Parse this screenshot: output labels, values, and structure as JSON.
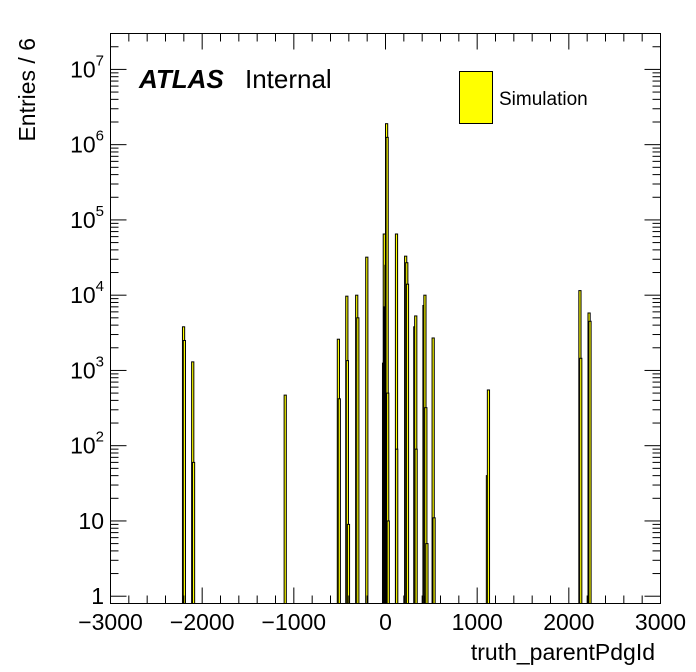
{
  "chart_data": {
    "type": "bar",
    "title": "",
    "xlabel": "truth_parentPdgId",
    "ylabel": "Entries / 6",
    "xlim": [
      -3000,
      3000
    ],
    "ylim": [
      0.8,
      30000000
    ],
    "yscale": "log",
    "grid": false,
    "legend_position": "top-right",
    "x_ticks": [
      {
        "value": -3000,
        "label": "−3000"
      },
      {
        "value": -2000,
        "label": "−2000"
      },
      {
        "value": -1000,
        "label": "−1000"
      },
      {
        "value": 0,
        "label": "0"
      },
      {
        "value": 1000,
        "label": "1000"
      },
      {
        "value": 2000,
        "label": "2000"
      },
      {
        "value": 3000,
        "label": "3000"
      }
    ],
    "y_ticks": [
      {
        "value": 1,
        "base": "1",
        "exp": ""
      },
      {
        "value": 10,
        "base": "10",
        "exp": ""
      },
      {
        "value": 100,
        "base": "10",
        "exp": "2"
      },
      {
        "value": 1000,
        "base": "10",
        "exp": "3"
      },
      {
        "value": 10000,
        "base": "10",
        "exp": "4"
      },
      {
        "value": 100000,
        "base": "10",
        "exp": "5"
      },
      {
        "value": 1000000,
        "base": "10",
        "exp": "6"
      },
      {
        "value": 10000000,
        "base": "10",
        "exp": "7"
      }
    ],
    "annotation": {
      "bold": "ATLAS",
      "normal": "Internal"
    },
    "series": [
      {
        "name": "Simulation",
        "color": "#ffff00",
        "bins": [
          {
            "x": -2212,
            "y": 3800
          },
          {
            "x": -2203,
            "y": 2500
          },
          {
            "x": -2112,
            "y": 1300
          },
          {
            "x": -2103,
            "y": 60
          },
          {
            "x": -1103,
            "y": 470
          },
          {
            "x": -523,
            "y": 2600
          },
          {
            "x": -513,
            "y": 420
          },
          {
            "x": -431,
            "y": 9700
          },
          {
            "x": -425,
            "y": 1350
          },
          {
            "x": -413,
            "y": 9
          },
          {
            "x": -323,
            "y": 10000
          },
          {
            "x": -311,
            "y": 5000
          },
          {
            "x": -213,
            "y": 32000
          },
          {
            "x": -30,
            "y": 1250
          },
          {
            "x": -22,
            "y": 65000
          },
          {
            "x": -16,
            "y": 6000
          },
          {
            "x": -13,
            "y": 7000
          },
          {
            "x": -3,
            "y": 25000
          },
          {
            "x": 3,
            "y": 1900000
          },
          {
            "x": 9,
            "y": 1250000
          },
          {
            "x": 15,
            "y": 500
          },
          {
            "x": 21,
            "y": 10
          },
          {
            "x": 111,
            "y": 65000
          },
          {
            "x": 113,
            "y": 90
          },
          {
            "x": 211,
            "y": 33000
          },
          {
            "x": 223,
            "y": 27000
          },
          {
            "x": 231,
            "y": 14000
          },
          {
            "x": 311,
            "y": 3800
          },
          {
            "x": 321,
            "y": 5300
          },
          {
            "x": 325,
            "y": 90
          },
          {
            "x": 411,
            "y": 7300
          },
          {
            "x": 421,
            "y": 10000
          },
          {
            "x": 425,
            "y": 1
          },
          {
            "x": 431,
            "y": 320
          },
          {
            "x": 443,
            "y": 5
          },
          {
            "x": 511,
            "y": 2700
          },
          {
            "x": 521,
            "y": 11
          },
          {
            "x": 1103,
            "y": 40
          },
          {
            "x": 1114,
            "y": 550
          },
          {
            "x": 2112,
            "y": 11500
          },
          {
            "x": 2121,
            "y": 1450
          },
          {
            "x": 2212,
            "y": 5800
          },
          {
            "x": 2222,
            "y": 4500
          }
        ]
      }
    ]
  }
}
